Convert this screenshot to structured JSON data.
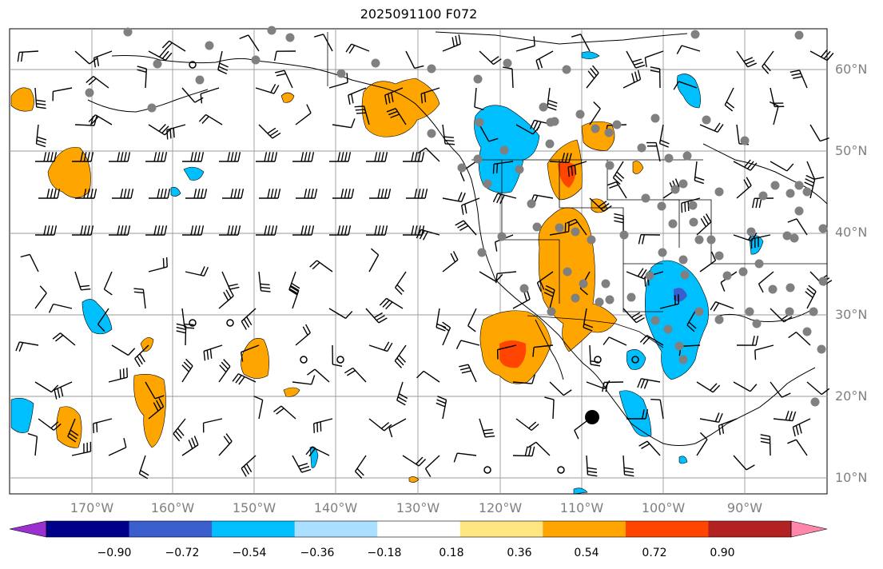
{
  "title": "2025091100 F072",
  "lat_labels": [
    "60°N",
    "50°N",
    "40°N",
    "30°N",
    "20°N",
    "10°N"
  ],
  "lon_labels": [
    "170°W",
    "160°W",
    "150°W",
    "140°W",
    "130°W",
    "120°W",
    "110°W",
    "100°W",
    "90°W"
  ],
  "colorbar": {
    "ticks": [
      "−0.90",
      "−0.72",
      "−0.54",
      "−0.36",
      "−0.18",
      "0.18",
      "0.36",
      "0.54",
      "0.72",
      "0.90"
    ],
    "colors": [
      "#9b30d0",
      "#00008b",
      "#3a5fcd",
      "#00bfff",
      "#aadfff",
      "#ffffff",
      "#ffe680",
      "#ffa500",
      "#ff4500",
      "#b22222",
      "#ff88aa"
    ]
  },
  "fill_colors": {
    "pos_light": "#ffa500",
    "pos_mid": "#ff4500",
    "neg_light": "#00bfff",
    "neg_mid": "#3a5fcd"
  },
  "marker_color": "#808080"
}
